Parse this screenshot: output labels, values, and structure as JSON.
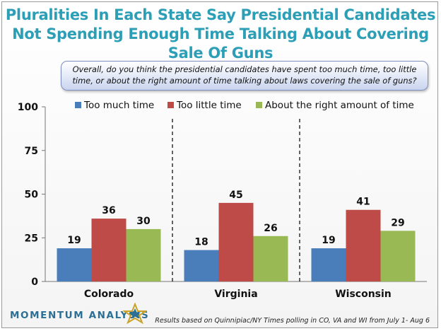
{
  "title": "Pluralities In Each State Say Presidential Candidates Not Spending Enough Time Talking About Covering Sale Of Guns",
  "question": "Overall, do you think the presidential candidates have spent too much time, too little time, or about the right amount of time talking about laws covering the sale of guns?",
  "brand": "MOMENTUM ANALYSIS",
  "footnote": "Results based on Quinnipiac/NY Times polling in CO, VA and WI from July 1- Aug 6",
  "chart_data": {
    "type": "bar",
    "categories": [
      "Colorado",
      "Virginia",
      "Wisconsin"
    ],
    "series": [
      {
        "name": "Too much time",
        "color": "#4a7ebb",
        "values": [
          19,
          18,
          19
        ]
      },
      {
        "name": "Too little time",
        "color": "#be4b48",
        "values": [
          36,
          45,
          41
        ]
      },
      {
        "name": "About the right amount of time",
        "color": "#98b954",
        "values": [
          30,
          26,
          29
        ]
      }
    ],
    "ylim": [
      0,
      100
    ],
    "yticks": [
      0,
      25,
      50,
      75,
      100
    ],
    "legend_position": "top",
    "grid": false,
    "data_labels": true
  }
}
